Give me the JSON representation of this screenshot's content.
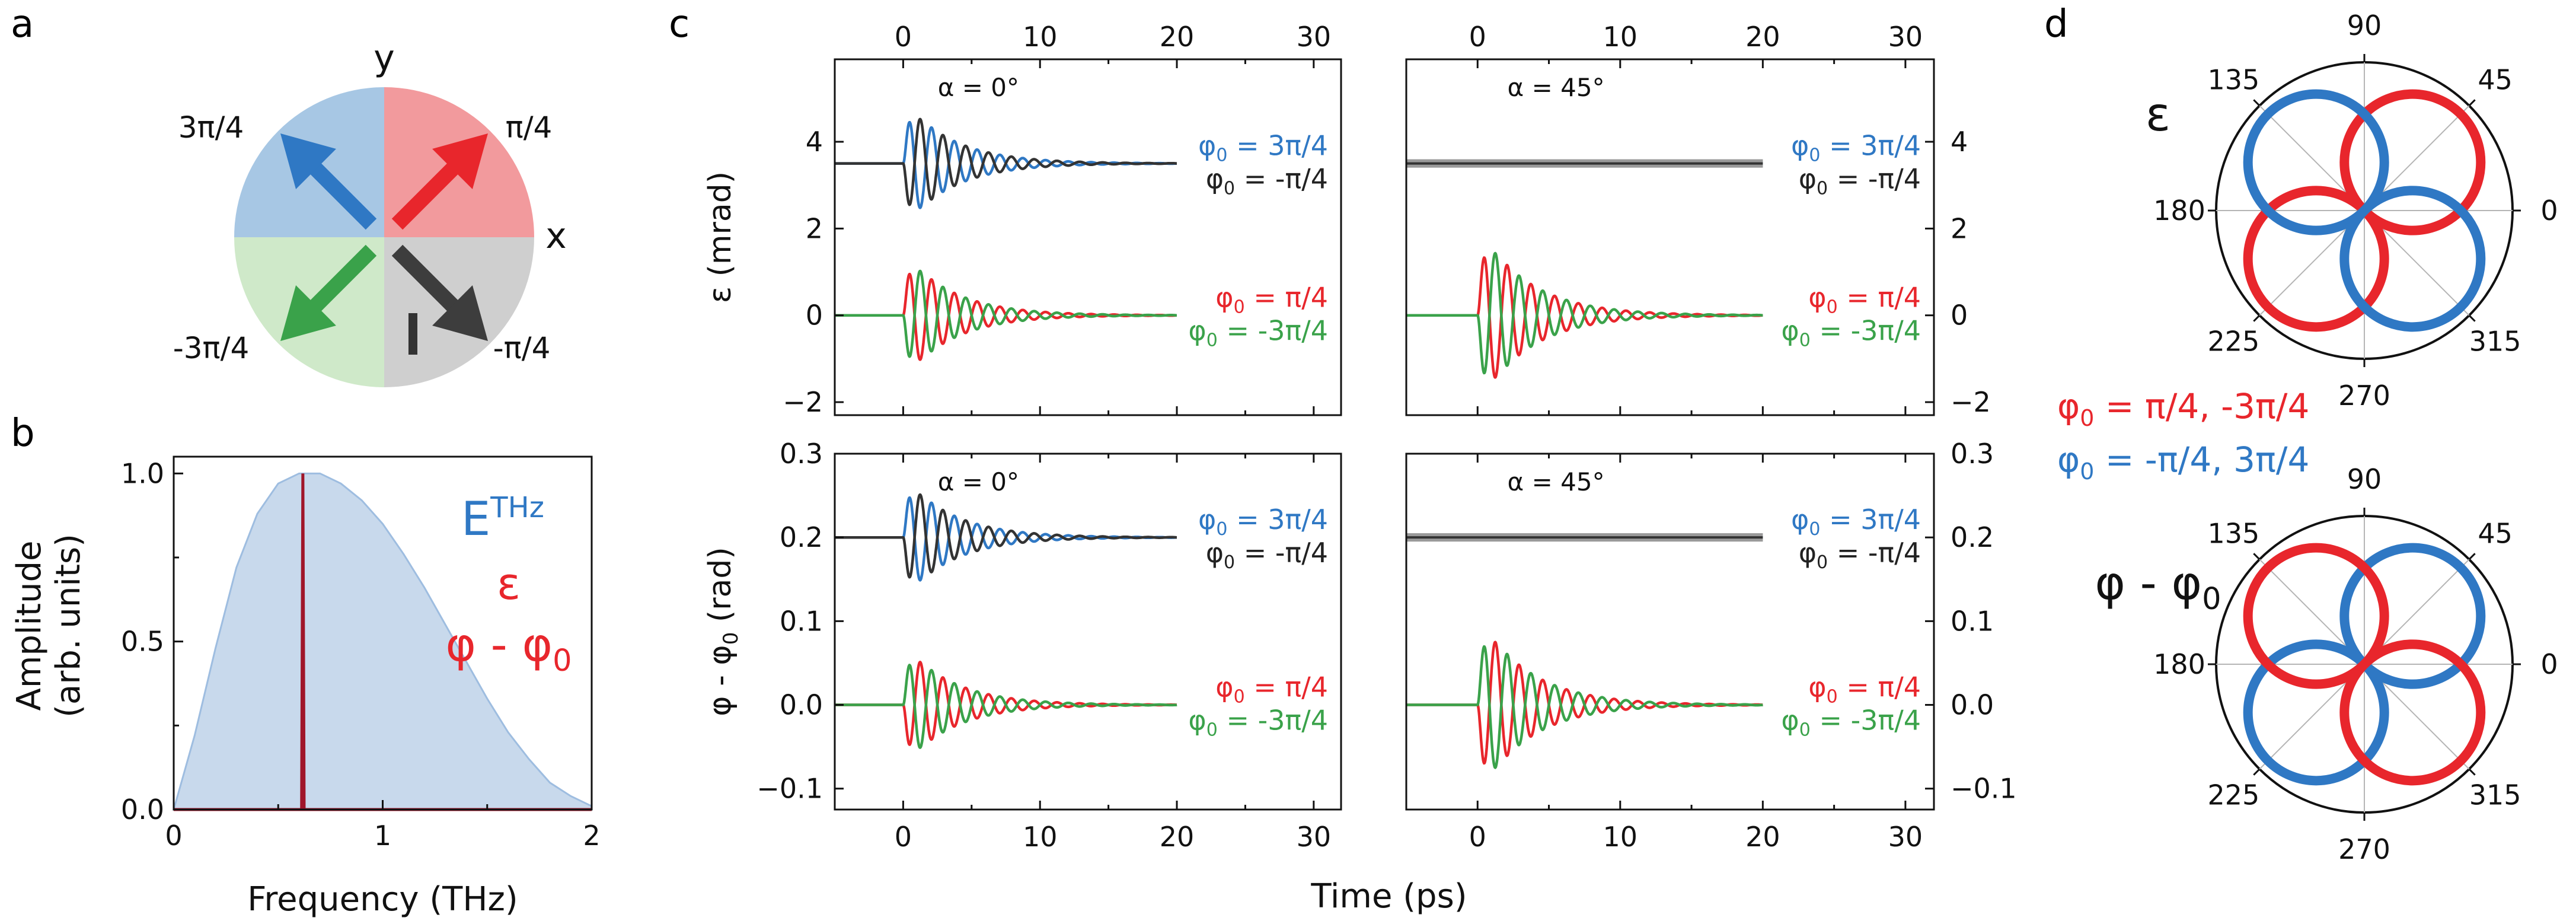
{
  "panel_labels": {
    "a": "a",
    "b": "b",
    "c": "c",
    "d": "d"
  },
  "colors": {
    "red": "#e8262c",
    "blue": "#2f78c4",
    "black": "#333333",
    "green": "#3aa24a",
    "dark_red": "#a0162a",
    "fill_blue": "#c8d9ec",
    "q_red": "#f29a9d",
    "q_blue": "#a7c7e4",
    "q_green": "#cfe9c9",
    "q_gray": "#cfcfcf"
  },
  "panel_a": {
    "axis_y": "y",
    "axis_x": "x",
    "quadrants": [
      {
        "label": "π/4",
        "arrow_color": "red"
      },
      {
        "label": "3π/4",
        "arrow_color": "blue"
      },
      {
        "label": "-3π/4",
        "arrow_color": "green"
      },
      {
        "label": "-π/4",
        "arrow_color": "black"
      }
    ],
    "marker": "I"
  },
  "chart_data": [
    {
      "id": "b",
      "type": "area",
      "xlabel": "Frequency (THz)",
      "ylabel_lines": [
        "Amplitude",
        "(arb. units)"
      ],
      "xlim": [
        0,
        2
      ],
      "ylim": [
        0,
        1.05
      ],
      "xticks": [
        0,
        1,
        2
      ],
      "xtick_labels": [
        "0",
        "1",
        "2"
      ],
      "yticks": [
        0,
        0.5,
        1.0
      ],
      "ytick_labels": [
        "0.0",
        "0.5",
        "1.0"
      ],
      "series": [
        {
          "name": "E",
          "sup": "THz",
          "kind": "area",
          "color": "blue",
          "x": [
            0,
            0.1,
            0.2,
            0.3,
            0.4,
            0.5,
            0.6,
            0.7,
            0.8,
            0.9,
            1.0,
            1.1,
            1.2,
            1.3,
            1.4,
            1.5,
            1.6,
            1.7,
            1.8,
            1.9,
            2.0
          ],
          "y": [
            0.0,
            0.22,
            0.48,
            0.72,
            0.88,
            0.97,
            1.0,
            1.0,
            0.97,
            0.92,
            0.85,
            0.76,
            0.66,
            0.55,
            0.44,
            0.33,
            0.23,
            0.15,
            0.08,
            0.04,
            0.01
          ]
        },
        {
          "name": "ε",
          "kind": "label",
          "color": "red"
        },
        {
          "name": "φ - φ",
          "sub": "0",
          "kind": "line",
          "color": "dark_red",
          "x": [
            0,
            0.6,
            0.612,
            0.618,
            0.624,
            0.636,
            2.0
          ],
          "y": [
            0.0,
            0.0,
            0.0,
            1.0,
            0.0,
            0.0,
            0.0
          ]
        }
      ]
    },
    {
      "id": "c",
      "type": "line",
      "xlabel": "Time (ps)",
      "xlim": [
        -5,
        32
      ],
      "xticks": [
        0,
        10,
        20,
        30
      ],
      "xtick_labels": [
        "0",
        "10",
        "20",
        "30"
      ],
      "subplots": [
        {
          "id": "c11",
          "col": 0,
          "row": 0,
          "title": "α = 0°",
          "ylabel": "ε (mrad)",
          "ylim": [
            -2.3,
            5.9
          ],
          "yticks": [
            -2,
            0,
            2,
            4
          ],
          "ytick_labels": [
            "−2",
            "0",
            "2",
            "4"
          ],
          "traces": [
            {
              "label": "φ",
              "sub": "0",
              "value": " = 3π/4",
              "color": "blue",
              "offset": 3.5,
              "amp": 1.5,
              "sign": 1
            },
            {
              "label": "φ",
              "sub": "0",
              "value": " = -π/4",
              "color": "black",
              "offset": 3.5,
              "amp": 1.5,
              "sign": -1
            },
            {
              "label": "φ",
              "sub": "0",
              "value": " = π/4",
              "color": "red",
              "offset": 0,
              "amp": 1.5,
              "sign": 1
            },
            {
              "label": "φ",
              "sub": "0",
              "value": " = -3π/4",
              "color": "green",
              "offset": 0,
              "amp": 1.5,
              "sign": -1
            }
          ]
        },
        {
          "id": "c12",
          "col": 1,
          "row": 0,
          "title": "α = 45°",
          "ylabel": "",
          "ylim": [
            -2.3,
            5.9
          ],
          "yticks": [
            -2,
            0,
            2,
            4
          ],
          "ytick_labels": [
            "−2",
            "0",
            "2",
            "4"
          ],
          "traces": [
            {
              "label": "φ",
              "sub": "0",
              "value": " = 3π/4",
              "color": "blue",
              "offset": 3.5,
              "amp": 0,
              "sign": 1
            },
            {
              "label": "φ",
              "sub": "0",
              "value": " = -π/4",
              "color": "black",
              "offset": 3.5,
              "amp": 0,
              "sign": -1
            },
            {
              "label": "φ",
              "sub": "0",
              "value": " = π/4",
              "color": "red",
              "offset": 0,
              "amp": 2.1,
              "sign": 1
            },
            {
              "label": "φ",
              "sub": "0",
              "value": " = -3π/4",
              "color": "green",
              "offset": 0,
              "amp": 2.1,
              "sign": -1
            }
          ]
        },
        {
          "id": "c21",
          "col": 0,
          "row": 1,
          "title": "α = 0°",
          "ylabel": "φ - φ",
          "ylabel_sub": "0",
          "ylabel_tail": " (rad)",
          "ylim": [
            -0.125,
            0.3
          ],
          "yticks": [
            -0.1,
            0.0,
            0.1,
            0.2,
            0.3
          ],
          "ytick_labels": [
            "−0.1",
            "0.0",
            "0.1",
            "0.2",
            "0.3"
          ],
          "traces": [
            {
              "label": "φ",
              "sub": "0",
              "value": " = 3π/4",
              "color": "blue",
              "offset": 0.2,
              "amp": 0.075,
              "sign": 1
            },
            {
              "label": "φ",
              "sub": "0",
              "value": " = -π/4",
              "color": "black",
              "offset": 0.2,
              "amp": 0.075,
              "sign": -1
            },
            {
              "label": "φ",
              "sub": "0",
              "value": " = π/4",
              "color": "red",
              "offset": 0,
              "amp": 0.075,
              "sign": -1
            },
            {
              "label": "φ",
              "sub": "0",
              "value": " = -3π/4",
              "color": "green",
              "offset": 0,
              "amp": 0.075,
              "sign": 1
            }
          ]
        },
        {
          "id": "c22",
          "col": 1,
          "row": 1,
          "title": "α = 45°",
          "ylabel": "",
          "ylim": [
            -0.125,
            0.3
          ],
          "yticks": [
            -0.1,
            0.0,
            0.1,
            0.2,
            0.3
          ],
          "ytick_labels": [
            "−0.1",
            "0.0",
            "0.1",
            "0.2",
            "0.3"
          ],
          "traces": [
            {
              "label": "φ",
              "sub": "0",
              "value": " = 3π/4",
              "color": "blue",
              "offset": 0.2,
              "amp": 0,
              "sign": 1
            },
            {
              "label": "φ",
              "sub": "0",
              "value": " = -π/4",
              "color": "black",
              "offset": 0.2,
              "amp": 0,
              "sign": -1
            },
            {
              "label": "φ",
              "sub": "0",
              "value": " = π/4",
              "color": "red",
              "offset": 0,
              "amp": 0.11,
              "sign": -1
            },
            {
              "label": "φ",
              "sub": "0",
              "value": " = -3π/4",
              "color": "green",
              "offset": 0,
              "amp": 0.11,
              "sign": 1
            }
          ]
        }
      ]
    },
    {
      "id": "d",
      "type": "polar",
      "angle_tick_labels": [
        "0",
        "45",
        "90",
        "135",
        "180",
        "225",
        "270",
        "315"
      ],
      "plots": [
        {
          "label": "ε",
          "label_sub": "",
          "lobes": [
            {
              "color": "red",
              "center_deg": [
                45,
                225
              ]
            },
            {
              "color": "blue",
              "center_deg": [
                135,
                315
              ]
            }
          ]
        },
        {
          "label": "φ - φ",
          "label_sub": "0",
          "lobes": [
            {
              "color": "blue",
              "center_deg": [
                45,
                225
              ]
            },
            {
              "color": "red",
              "center_deg": [
                135,
                315
              ]
            }
          ]
        }
      ],
      "legend": [
        {
          "prefix": "φ",
          "sub": "0",
          "text": " = π/4, -3π/4",
          "color": "red"
        },
        {
          "prefix": "φ",
          "sub": "0",
          "text": " = -π/4, 3π/4",
          "color": "blue"
        }
      ]
    }
  ]
}
